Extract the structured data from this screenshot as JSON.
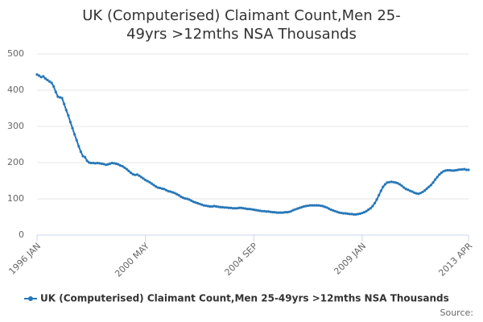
{
  "chart_data": {
    "type": "line",
    "title": "UK (Computerised) Claimant Count,Men 25-49yrs >12mths NSA Thousands",
    "categories": [
      "1996 JAN",
      null,
      null,
      null,
      null,
      null,
      null,
      null,
      null,
      null,
      null,
      null,
      null,
      null,
      null,
      null,
      null,
      null,
      null,
      null,
      null,
      null,
      null,
      null,
      null,
      null,
      null,
      null,
      null,
      null,
      null,
      null,
      null,
      null,
      null,
      null,
      null,
      null,
      null,
      null,
      null,
      null,
      null,
      null,
      null,
      null,
      null,
      null,
      null,
      null,
      null,
      null,
      "2000 MAY",
      null,
      null,
      null,
      null,
      null,
      null,
      null,
      null,
      null,
      null,
      null,
      null,
      null,
      null,
      null,
      null,
      null,
      null,
      null,
      null,
      null,
      null,
      null,
      null,
      null,
      null,
      null,
      null,
      null,
      null,
      null,
      null,
      null,
      null,
      null,
      null,
      null,
      null,
      null,
      null,
      null,
      null,
      null,
      null,
      null,
      null,
      null,
      null,
      null,
      null,
      null,
      "2004 SEP",
      null,
      null,
      null,
      null,
      null,
      null,
      null,
      null,
      null,
      null,
      null,
      null,
      null,
      null,
      null,
      null,
      null,
      null,
      null,
      null,
      null,
      null,
      null,
      null,
      null,
      null,
      null,
      null,
      null,
      null,
      null,
      null,
      null,
      null,
      null,
      null,
      null,
      null,
      null,
      null,
      null,
      null,
      null,
      null,
      null,
      null,
      null,
      null,
      null,
      null,
      null,
      "2009 JAN",
      null,
      null,
      null,
      null,
      null,
      null,
      null,
      null,
      null,
      null,
      null,
      null,
      null,
      null,
      null,
      null,
      null,
      null,
      null,
      null,
      null,
      null,
      null,
      null,
      null,
      null,
      null,
      null,
      null,
      null,
      null,
      null,
      null,
      null,
      null,
      null,
      null,
      null,
      null,
      null,
      null,
      null,
      null,
      null,
      null,
      null,
      null,
      null,
      null,
      null,
      "2013 APR"
    ],
    "series": [
      {
        "name": "UK (Computerised) Claimant Count,Men 25-49yrs >12mths NSA Thousands",
        "color": "#2878b8",
        "values": [
          443,
          440,
          436,
          438,
          432,
          428,
          424,
          420,
          410,
          395,
          382,
          380,
          378,
          362,
          345,
          330,
          312,
          295,
          278,
          262,
          245,
          230,
          218,
          215,
          205,
          200,
          199,
          199,
          198,
          199,
          198,
          197,
          196,
          194,
          195,
          197,
          199,
          198,
          197,
          195,
          192,
          190,
          186,
          182,
          177,
          172,
          168,
          166,
          167,
          164,
          160,
          156,
          152,
          149,
          146,
          142,
          138,
          134,
          131,
          130,
          128,
          127,
          124,
          121,
          120,
          118,
          116,
          113,
          110,
          106,
          103,
          101,
          100,
          98,
          95,
          92,
          90,
          88,
          86,
          84,
          82,
          81,
          80,
          79,
          79,
          80,
          79,
          78,
          77,
          77,
          76,
          76,
          75,
          75,
          74,
          74,
          74,
          75,
          75,
          74,
          73,
          72,
          72,
          71,
          70,
          69,
          68,
          67,
          66,
          66,
          65,
          65,
          64,
          63,
          63,
          62,
          62,
          62,
          62,
          63,
          63,
          64,
          66,
          69,
          71,
          73,
          75,
          77,
          79,
          80,
          81,
          82,
          82,
          82,
          82,
          82,
          81,
          80,
          78,
          76,
          73,
          70,
          68,
          66,
          64,
          62,
          61,
          60,
          60,
          59,
          58,
          58,
          57,
          57,
          58,
          59,
          61,
          63,
          66,
          70,
          74,
          80,
          88,
          98,
          110,
          122,
          133,
          140,
          145,
          146,
          147,
          146,
          145,
          143,
          140,
          136,
          131,
          127,
          125,
          122,
          120,
          117,
          115,
          114,
          116,
          119,
          123,
          128,
          133,
          138,
          145,
          153,
          160,
          167,
          172,
          176,
          178,
          179,
          179,
          178,
          178,
          179,
          180,
          181,
          181,
          182,
          180,
          180
        ]
      }
    ],
    "ylim": [
      0,
      500
    ],
    "yticks": [
      0,
      100,
      200,
      300,
      400,
      500
    ],
    "grid": true,
    "source": "Source:"
  }
}
